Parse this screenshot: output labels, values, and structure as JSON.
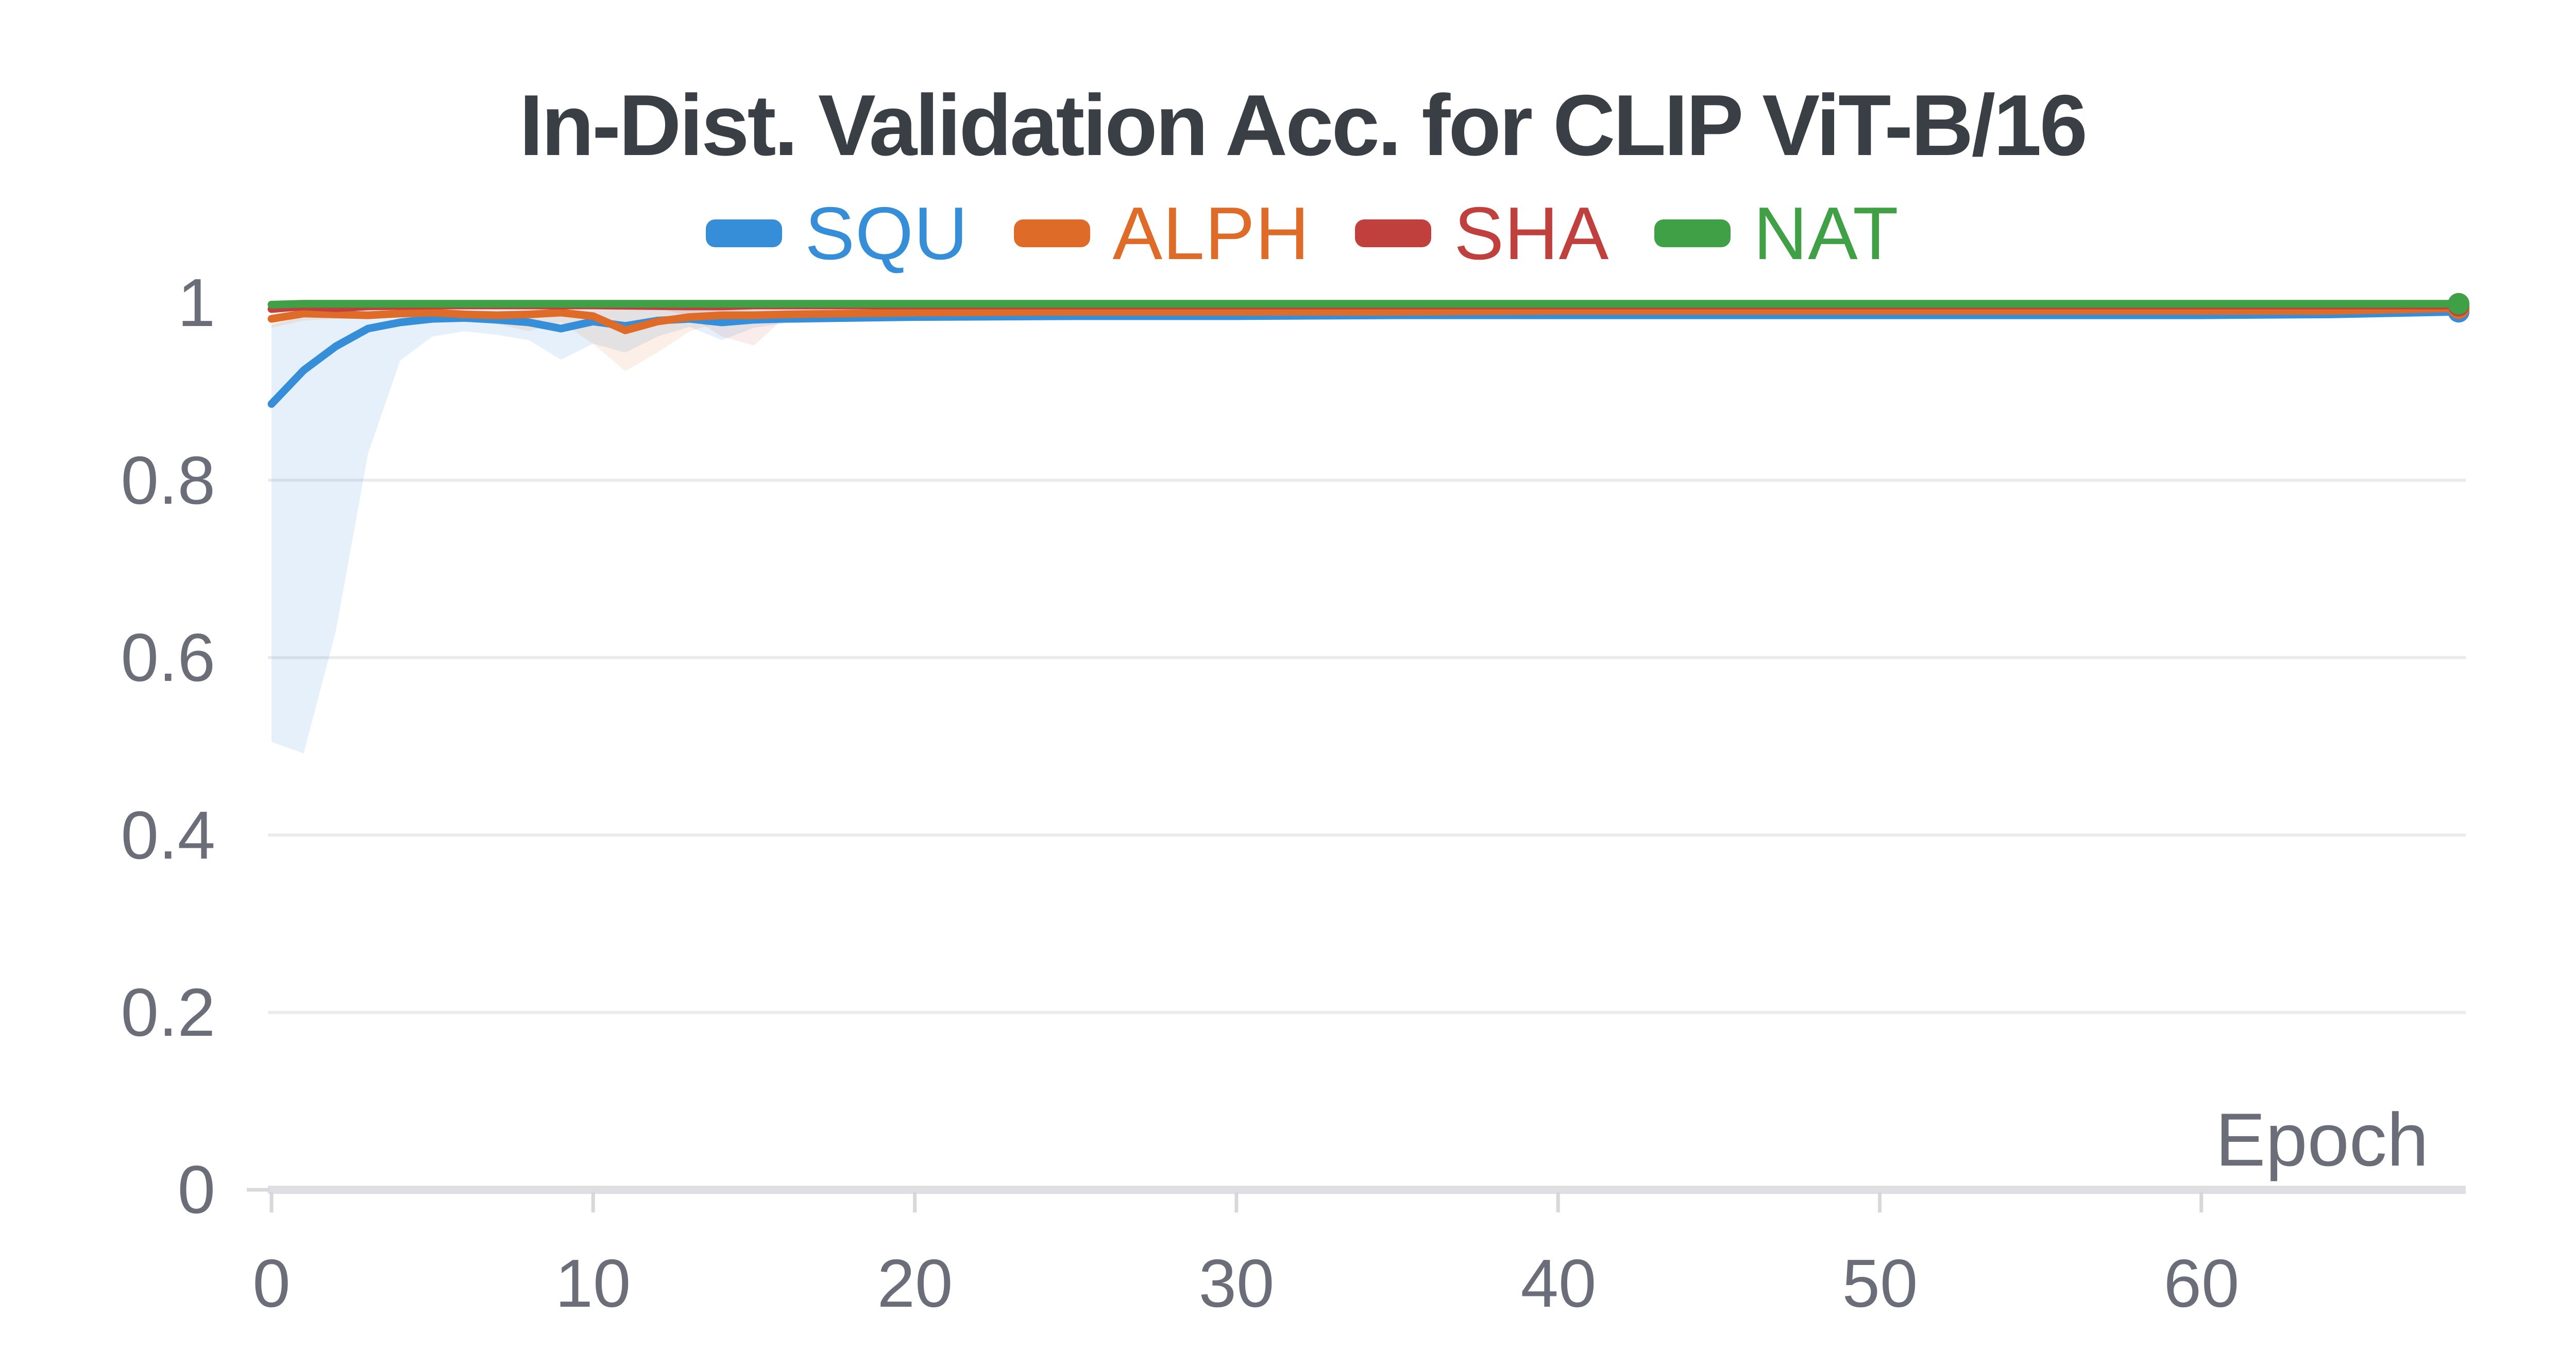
{
  "chart_data": {
    "type": "line",
    "title": "In-Dist. Validation Acc. for CLIP ViT-B/16",
    "xlabel": "Epoch",
    "ylabel": "",
    "xlim": [
      0,
      68
    ],
    "ylim": [
      0,
      1
    ],
    "grid": "horizontal",
    "legend_position": "top-center",
    "x_ticks": [
      0,
      10,
      20,
      30,
      40,
      50,
      60
    ],
    "x_tick_labels": [
      "0",
      "10",
      "20",
      "30",
      "40",
      "50",
      "60"
    ],
    "y_ticks": [
      0,
      0.2,
      0.4,
      0.6,
      0.8,
      1
    ],
    "y_tick_labels": [
      "0",
      "0.2",
      "0.4",
      "0.6",
      "0.8",
      "1"
    ],
    "series": [
      {
        "name": "SQU",
        "color": "#358ed7",
        "end_marker": true,
        "points": [
          [
            0,
            0.886
          ],
          [
            1,
            0.924
          ],
          [
            2,
            0.951
          ],
          [
            3,
            0.971
          ],
          [
            4,
            0.978
          ],
          [
            5,
            0.982
          ],
          [
            6,
            0.983
          ],
          [
            7,
            0.981
          ],
          [
            8,
            0.978
          ],
          [
            9,
            0.971
          ],
          [
            10,
            0.979
          ],
          [
            11,
            0.974
          ],
          [
            12,
            0.98
          ],
          [
            13,
            0.982
          ],
          [
            14,
            0.978
          ],
          [
            15,
            0.981
          ],
          [
            16,
            0.982
          ],
          [
            18,
            0.983
          ],
          [
            20,
            0.984
          ],
          [
            25,
            0.985
          ],
          [
            30,
            0.985
          ],
          [
            35,
            0.986
          ],
          [
            40,
            0.986
          ],
          [
            45,
            0.986
          ],
          [
            50,
            0.986
          ],
          [
            55,
            0.986
          ],
          [
            60,
            0.986
          ],
          [
            64,
            0.987
          ],
          [
            68,
            0.99
          ]
        ],
        "band": {
          "fill": "rgba(53,142,215,0.13)",
          "points": [
            [
              0,
              0.505,
              0.975
            ],
            [
              1,
              0.492,
              0.985
            ],
            [
              2,
              0.63,
              0.989
            ],
            [
              3,
              0.83,
              0.991
            ],
            [
              4,
              0.935,
              0.992
            ],
            [
              5,
              0.962,
              0.992
            ],
            [
              6,
              0.968,
              0.992
            ],
            [
              7,
              0.964,
              0.992
            ],
            [
              8,
              0.958,
              0.992
            ],
            [
              9,
              0.936,
              0.992
            ],
            [
              10,
              0.954,
              0.992
            ],
            [
              11,
              0.944,
              0.993
            ],
            [
              12,
              0.962,
              0.993
            ],
            [
              13,
              0.973,
              0.993
            ],
            [
              14,
              0.958,
              0.992
            ],
            [
              15,
              0.972,
              0.992
            ],
            [
              16,
              0.977,
              0.992
            ],
            [
              18,
              0.979,
              0.992
            ],
            [
              20,
              0.98,
              0.991
            ],
            [
              25,
              0.981,
              0.99
            ],
            [
              30,
              0.982,
              0.99
            ],
            [
              40,
              0.983,
              0.99
            ],
            [
              50,
              0.983,
              0.99
            ],
            [
              60,
              0.983,
              0.99
            ],
            [
              68,
              0.986,
              0.993
            ]
          ]
        }
      },
      {
        "name": "ALPH",
        "color": "#df6b28",
        "end_marker": true,
        "points": [
          [
            0,
            0.982
          ],
          [
            1,
            0.988
          ],
          [
            2,
            0.987
          ],
          [
            3,
            0.986
          ],
          [
            4,
            0.988
          ],
          [
            5,
            0.989
          ],
          [
            6,
            0.987
          ],
          [
            7,
            0.986
          ],
          [
            8,
            0.987
          ],
          [
            9,
            0.989
          ],
          [
            10,
            0.985
          ],
          [
            11,
            0.969
          ],
          [
            12,
            0.979
          ],
          [
            13,
            0.984
          ],
          [
            14,
            0.986
          ],
          [
            15,
            0.986
          ],
          [
            16,
            0.987
          ],
          [
            18,
            0.988
          ],
          [
            20,
            0.989
          ],
          [
            25,
            0.99
          ],
          [
            30,
            0.99
          ],
          [
            35,
            0.99
          ],
          [
            40,
            0.991
          ],
          [
            45,
            0.991
          ],
          [
            50,
            0.991
          ],
          [
            55,
            0.991
          ],
          [
            60,
            0.991
          ],
          [
            64,
            0.991
          ],
          [
            68,
            0.994
          ]
        ],
        "band": {
          "fill": "rgba(223,107,40,0.11)",
          "points": [
            [
              0,
              0.972,
              0.988
            ],
            [
              1,
              0.98,
              0.991
            ],
            [
              2,
              0.982,
              0.992
            ],
            [
              4,
              0.983,
              0.992
            ],
            [
              6,
              0.981,
              0.991
            ],
            [
              7,
              0.976,
              0.991
            ],
            [
              8,
              0.968,
              0.991
            ],
            [
              9,
              0.978,
              0.992
            ],
            [
              10,
              0.954,
              0.992
            ],
            [
              11,
              0.923,
              0.992
            ],
            [
              12,
              0.944,
              0.992
            ],
            [
              13,
              0.968,
              0.992
            ],
            [
              14,
              0.979,
              0.992
            ],
            [
              15,
              0.981,
              0.991
            ],
            [
              16,
              0.983,
              0.991
            ],
            [
              18,
              0.984,
              0.992
            ],
            [
              20,
              0.985,
              0.992
            ],
            [
              30,
              0.987,
              0.993
            ],
            [
              40,
              0.988,
              0.994
            ],
            [
              50,
              0.988,
              0.994
            ],
            [
              60,
              0.988,
              0.994
            ],
            [
              68,
              0.99,
              0.996
            ]
          ]
        }
      },
      {
        "name": "SHA",
        "color": "#c0403d",
        "end_marker": true,
        "points": [
          [
            0,
            0.993
          ],
          [
            1,
            0.996
          ],
          [
            2,
            0.994
          ],
          [
            3,
            0.996
          ],
          [
            5,
            0.997
          ],
          [
            10,
            0.997
          ],
          [
            13,
            0.996
          ],
          [
            14,
            0.996
          ],
          [
            15,
            0.997
          ],
          [
            20,
            0.997
          ],
          [
            30,
            0.997
          ],
          [
            40,
            0.997
          ],
          [
            50,
            0.997
          ],
          [
            60,
            0.997
          ],
          [
            68,
            0.997
          ]
        ],
        "band": {
          "fill": "rgba(192,64,61,0.10)",
          "points": [
            [
              0,
              0.99,
              0.996
            ],
            [
              2,
              0.993,
              0.998
            ],
            [
              12,
              0.994,
              0.998
            ],
            [
              13,
              0.985,
              0.998
            ],
            [
              14,
              0.962,
              0.998
            ],
            [
              15,
              0.952,
              0.998
            ],
            [
              16,
              0.985,
              0.998
            ],
            [
              17,
              0.992,
              0.998
            ],
            [
              20,
              0.994,
              0.999
            ],
            [
              68,
              0.994,
              0.999
            ]
          ]
        }
      },
      {
        "name": "NAT",
        "color": "#3fa046",
        "end_marker": true,
        "points": [
          [
            0,
            0.998
          ],
          [
            1,
            0.999
          ],
          [
            5,
            0.999
          ],
          [
            10,
            0.999
          ],
          [
            20,
            0.999
          ],
          [
            30,
            0.999
          ],
          [
            40,
            0.999
          ],
          [
            50,
            0.999
          ],
          [
            60,
            0.999
          ],
          [
            68,
            0.999
          ]
        ],
        "band": null
      }
    ]
  },
  "colors": {
    "title_text": "#3a3f45",
    "tick_text": "#6b6e78",
    "gridline": "#ebebee",
    "axis_line": "#dfdfe3",
    "tick_mark": "#d7d7dc"
  }
}
